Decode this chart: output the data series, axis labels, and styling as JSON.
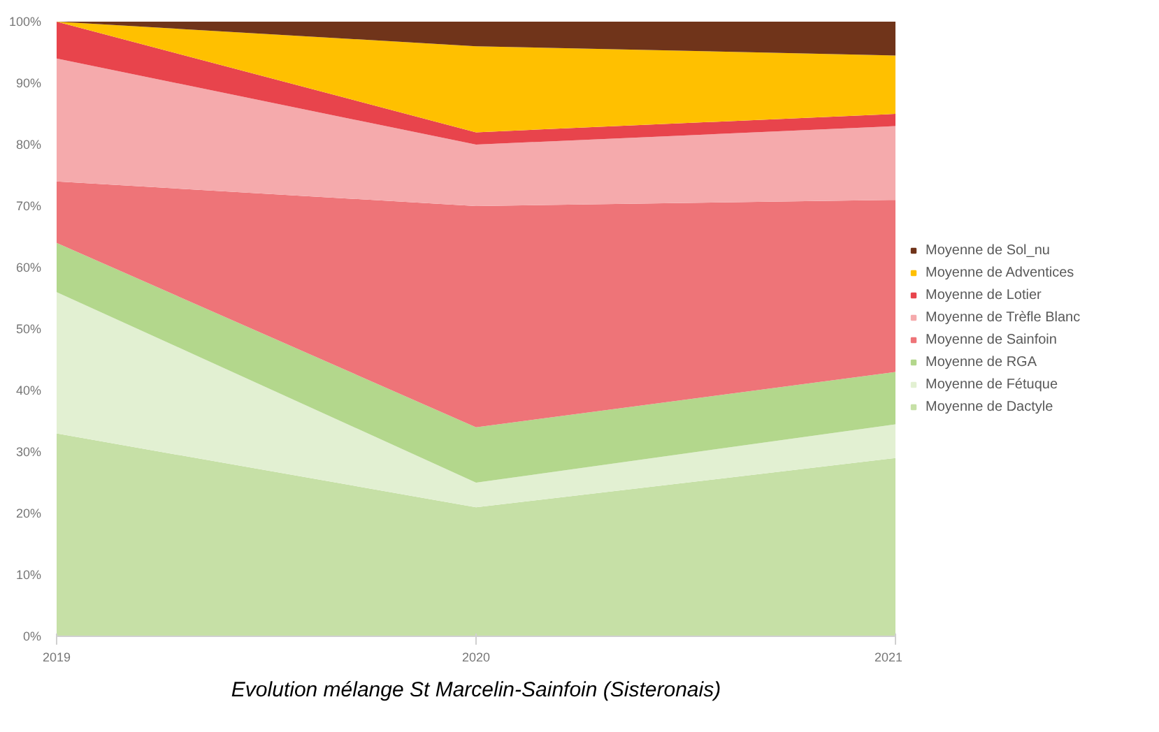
{
  "chart_data": {
    "type": "area",
    "stacked": true,
    "title": "Evolution mélange St Marcelin-Sainfoin (Sisteronais)",
    "x": [
      2019,
      2020,
      2021
    ],
    "xlim": [
      2019,
      2021
    ],
    "xticks": [
      2019,
      2020,
      2021
    ],
    "ylim": [
      0,
      100
    ],
    "yticks": [
      {
        "value": 0,
        "label": "0%"
      },
      {
        "value": 10,
        "label": "10%"
      },
      {
        "value": 20,
        "label": "20%"
      },
      {
        "value": 30,
        "label": "30%"
      },
      {
        "value": 40,
        "label": "40%"
      },
      {
        "value": 50,
        "label": "50%"
      },
      {
        "value": 60,
        "label": "60%"
      },
      {
        "value": 70,
        "label": "70%"
      },
      {
        "value": 80,
        "label": "80%"
      },
      {
        "value": 90,
        "label": "90%"
      },
      {
        "value": 100,
        "label": "100%"
      }
    ],
    "legend": "right",
    "grid": false,
    "series": [
      {
        "name": "Moyenne de Dactyle",
        "color": "#c6e0a6",
        "values": [
          33,
          21,
          29
        ]
      },
      {
        "name": "Moyenne de Fétuque",
        "color": "#e2f0d2",
        "values": [
          23,
          4,
          5.5
        ]
      },
      {
        "name": "Moyenne de RGA",
        "color": "#b3d78c",
        "values": [
          8,
          9,
          8.5
        ]
      },
      {
        "name": "Moyenne de Sainfoin",
        "color": "#ee7478",
        "values": [
          10,
          36,
          28
        ]
      },
      {
        "name": "Moyenne de Trèfle Blanc",
        "color": "#f5aaac",
        "values": [
          20,
          10,
          12
        ]
      },
      {
        "name": "Moyenne de Lotier",
        "color": "#e8444c",
        "values": [
          6,
          2,
          2
        ]
      },
      {
        "name": "Moyenne de Adventices",
        "color": "#ffc000",
        "values": [
          0,
          14,
          9.5
        ]
      },
      {
        "name": "Moyenne de Sol_nu",
        "color": "#70341a",
        "values": [
          0,
          4,
          5.5
        ]
      }
    ]
  }
}
